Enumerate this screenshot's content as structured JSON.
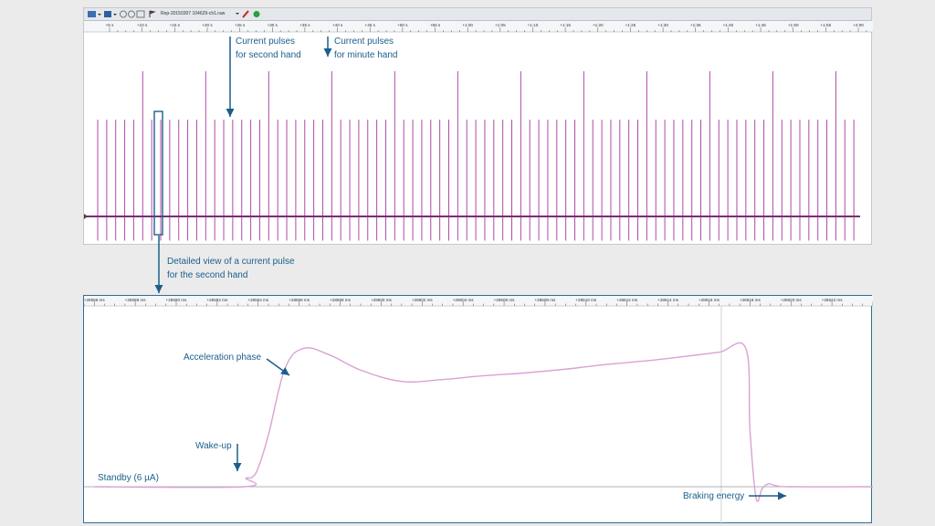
{
  "toolbar": {
    "file_name": "Rep-20150307 104629-ch1.raw",
    "icons": [
      "folder-icon",
      "save-icon",
      "circle-icon",
      "settings-icon",
      "flag-icon",
      "pen-icon",
      "go-icon"
    ]
  },
  "colors": {
    "signal": "#b04aa8",
    "signal_light": "#d9a2d5",
    "callout": "#1b5f8c",
    "frame": "#2e6f96"
  },
  "annotations": {
    "second_hand": [
      "Current pulses",
      "for second hand"
    ],
    "minute_hand": [
      "Current pulses",
      "for minute hand"
    ],
    "detail": [
      "Detailed view of a current pulse",
      "for the second hand"
    ],
    "acceleration": "Acceleration phase",
    "wakeup": "Wake-up",
    "standby": "Standby (6 µA)",
    "braking": "Braking energy"
  },
  "chart_data": [
    {
      "type": "line",
      "title": "",
      "xlabel": "",
      "ylabel": "",
      "x_ticks": [
        "+5 s",
        "+10 s",
        "+15 s",
        "+20 s",
        "+25 s",
        "+30 s",
        "+35 s",
        "+40 s",
        "+45 s",
        "+50 s",
        "+55 s",
        "+1:00",
        "+1:05",
        "+1:10",
        "+1:15",
        "+1:20",
        "+1:25",
        "+1:30",
        "+1:35",
        "+1:40",
        "+1:45",
        "+1:50",
        "+1:55",
        "+2:00"
      ],
      "pulse_count": 85,
      "minute_pulse_indices": [
        5,
        12,
        19,
        26,
        33,
        40,
        47,
        54,
        61,
        68,
        75,
        82
      ],
      "pulse_levels": {
        "baseline": 0,
        "second_hand": 1,
        "minute_hand": 1.5,
        "negative": -0.25
      }
    },
    {
      "type": "line",
      "title": "",
      "xlabel": "",
      "ylabel": "",
      "x_ticks": [
        "+28586 ms",
        "+28588 ms",
        "+28590 ms",
        "+28592 ms",
        "+28594 ms",
        "+28596 ms",
        "+28598 ms",
        "+28600 ms",
        "+28602 ms",
        "+28604 ms",
        "+28606 ms",
        "+28608 ms",
        "+28610 ms",
        "+28612 ms",
        "+28614 ms",
        "+28616 ms",
        "+28618 ms",
        "+28620 ms",
        "+28622 ms"
      ],
      "x_unit": "ms",
      "curve": {
        "x": [
          28586,
          28593.3,
          28593.4,
          28593.7,
          28594.0,
          28594.5,
          28595.3,
          28596.2,
          28597.5,
          28599.0,
          28601.0,
          28603.0,
          28605.0,
          28607.0,
          28609.0,
          28611.0,
          28613.0,
          28615.0,
          28616.5,
          28617.8,
          28618.0,
          28618.3,
          28618.6,
          28618.9,
          28619.3,
          28620.0,
          28624
        ],
        "y": [
          0,
          0,
          0.09,
          0.1,
          0.2,
          0.55,
          1.25,
          1.47,
          1.4,
          1.24,
          1.12,
          1.14,
          1.18,
          1.21,
          1.25,
          1.3,
          1.34,
          1.39,
          1.43,
          1.47,
          0.6,
          -0.12,
          -0.02,
          0.03,
          0.01,
          0,
          0
        ]
      },
      "standby_level": 0
    }
  ]
}
